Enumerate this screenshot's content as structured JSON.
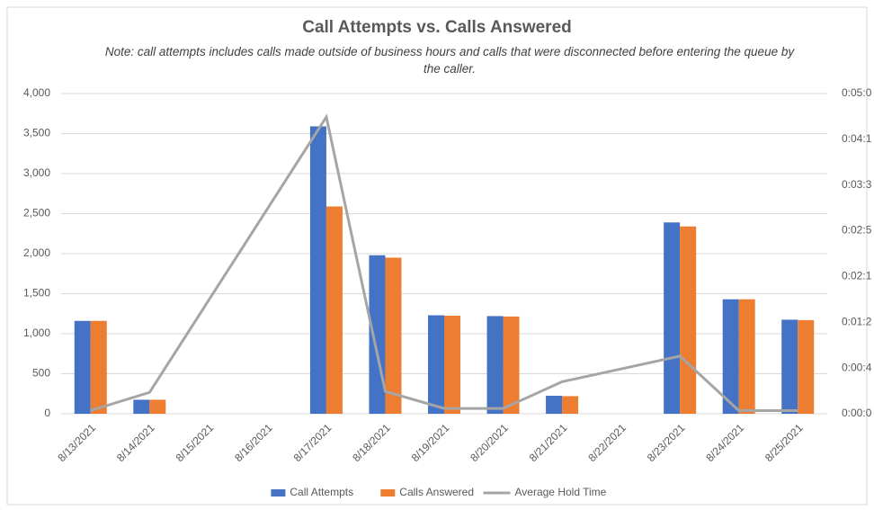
{
  "chart_data": {
    "type": "combo",
    "title": "Call Attempts vs. Calls Answered",
    "subtitle": "Note: call attempts includes calls made outside of business hours and calls that were disconnected before entering the queue by the caller.",
    "categories": [
      "8/13/2021",
      "8/14/2021",
      "8/15/2021",
      "8/16/2021",
      "8/17/2021",
      "8/18/2021",
      "8/19/2021",
      "8/20/2021",
      "8/21/2021",
      "8/22/2021",
      "8/23/2021",
      "8/24/2021",
      "8/25/2021"
    ],
    "series": [
      {
        "name": "Call Attempts",
        "type": "bar",
        "color": "#4472c4",
        "values": [
          1160,
          175,
          null,
          null,
          3590,
          1980,
          1230,
          1220,
          225,
          null,
          2390,
          1430,
          1175
        ]
      },
      {
        "name": "Calls Answered",
        "type": "bar",
        "color": "#ed7d31",
        "values": [
          1160,
          175,
          null,
          null,
          2590,
          1950,
          1225,
          1215,
          220,
          null,
          2340,
          1430,
          1170
        ]
      },
      {
        "name": "Average Hold Time",
        "type": "line",
        "axis": "y2",
        "color": "#a5a5a5",
        "values": [
          3,
          20,
          106,
          192,
          278,
          21,
          5,
          5,
          30,
          42,
          54,
          3,
          3
        ]
      }
    ],
    "ylim": [
      0,
      4000
    ],
    "yticks": [
      0,
      500,
      {
        "value": 1000,
        "label": "1,000"
      },
      {
        "value": 1500,
        "label": "1,500"
      },
      {
        "value": 2000,
        "label": "2,000"
      },
      {
        "value": 2500,
        "label": "2,500"
      },
      {
        "value": 3000,
        "label": "3,000"
      },
      {
        "value": 3500,
        "label": "3,500"
      },
      {
        "value": 4000,
        "label": "4,000"
      }
    ],
    "y2lim": [
      0,
      300
    ],
    "y2ticks": [
      {
        "value": 0,
        "label": "0:00:0"
      },
      {
        "value": 42.86,
        "label": "0:00:4"
      },
      {
        "value": 85.71,
        "label": "0:01:2"
      },
      {
        "value": 128.57,
        "label": "0:02:1"
      },
      {
        "value": 171.43,
        "label": "0:02:5"
      },
      {
        "value": 214.29,
        "label": "0:03:3"
      },
      {
        "value": 257.14,
        "label": "0:04:1"
      },
      {
        "value": 300,
        "label": "0:05:0"
      }
    ],
    "grid": true,
    "legend": "bottom"
  }
}
